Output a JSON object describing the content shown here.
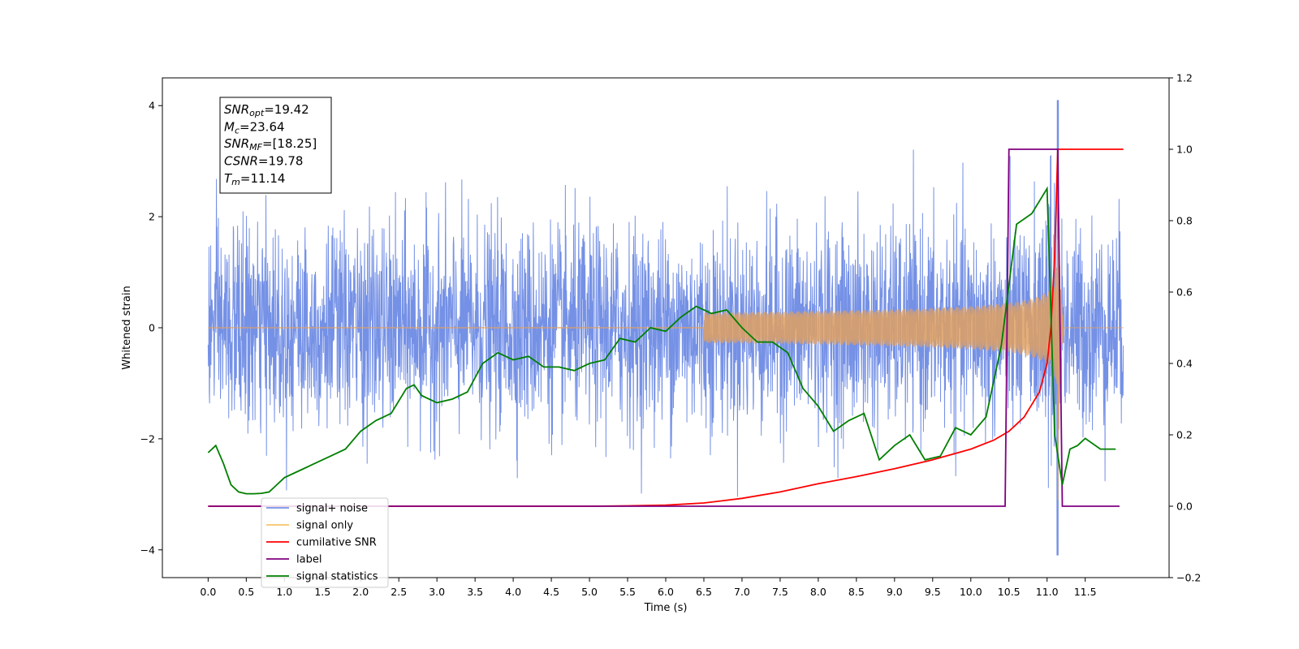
{
  "chart_data": {
    "type": "line",
    "xlabel": "Time (s)",
    "ylabel": "Whitened strain",
    "xlim": [
      -0.6,
      12.6
    ],
    "ylim": [
      -4.5,
      4.5
    ],
    "y2lim": [
      -0.2,
      1.2
    ],
    "x_ticks": [
      "0.0",
      "0.5",
      "1.0",
      "1.5",
      "2.0",
      "2.5",
      "3.0",
      "3.5",
      "4.0",
      "4.5",
      "5.0",
      "5.5",
      "6.0",
      "6.5",
      "7.0",
      "7.5",
      "8.0",
      "8.5",
      "9.0",
      "9.5",
      "10.0",
      "10.5",
      "11.0",
      "11.5"
    ],
    "y_ticks": [
      "4",
      "2",
      "0",
      "−2",
      "−4"
    ],
    "y_tick_values": [
      4,
      2,
      0,
      -2,
      -4
    ],
    "y2_ticks": [
      "1.2",
      "1.0",
      "0.8",
      "0.6",
      "0.4",
      "0.2",
      "0.0",
      "−0.2"
    ],
    "y2_tick_values": [
      1.2,
      1.0,
      0.8,
      0.6,
      0.4,
      0.2,
      0.0,
      -0.2
    ],
    "annotation": {
      "lines": [
        {
          "sym": "SNR",
          "sub": "opt",
          "val": "=19.42"
        },
        {
          "sym": "M",
          "sub": "c",
          "val": "=23.64"
        },
        {
          "sym": "SNR",
          "sub": "MF",
          "val": "=[18.25]"
        },
        {
          "sym": "CSNR",
          "sub": "",
          "val": "=19.78"
        },
        {
          "sym": "T",
          "sub": "m",
          "val": "=11.14"
        }
      ]
    },
    "legend": {
      "position": "lower-left",
      "entries": [
        {
          "label": "signal+ noise",
          "color": "#7591e6"
        },
        {
          "label": "signal only",
          "color": "#f5c56b"
        },
        {
          "label": "cumilative SNR",
          "color": "#ff0000"
        },
        {
          "label": "label",
          "color": "#800080"
        },
        {
          "label": "signal statistics",
          "color": "#007f00"
        }
      ]
    },
    "series": [
      {
        "name": "signal+ noise",
        "axis": "left",
        "color": "#7591e6",
        "kind": "noise",
        "x_range": [
          0.0,
          12.0
        ],
        "amplitude_sd": 0.9,
        "merger_time": 11.14,
        "min": -4.1,
        "max": 4.1
      },
      {
        "name": "signal only",
        "axis": "left",
        "color": "#e0a060",
        "kind": "chirp",
        "x_range": [
          0.0,
          12.0
        ],
        "start_visible": 6.5,
        "merger_time": 11.14,
        "peak": 3.7
      },
      {
        "name": "cumilative SNR",
        "axis": "right",
        "x": [
          0.0,
          5.0,
          5.5,
          6.0,
          6.5,
          7.0,
          7.5,
          8.0,
          8.5,
          9.0,
          9.5,
          10.0,
          10.3,
          10.5,
          10.7,
          10.9,
          11.0,
          11.05,
          11.1,
          11.14,
          11.2,
          12.0
        ],
        "y": [
          0.0,
          0.0,
          0.001,
          0.003,
          0.009,
          0.022,
          0.04,
          0.063,
          0.083,
          0.105,
          0.13,
          0.16,
          0.185,
          0.21,
          0.25,
          0.32,
          0.4,
          0.5,
          0.7,
          1.0,
          1.0,
          1.0
        ]
      },
      {
        "name": "label",
        "axis": "right",
        "x": [
          0.0,
          10.45,
          10.5,
          11.14,
          11.2,
          11.95
        ],
        "y": [
          0.0,
          0.0,
          1.0,
          1.0,
          0.0,
          0.0
        ]
      },
      {
        "name": "signal statistics",
        "axis": "right",
        "x": [
          0.0,
          0.1,
          0.2,
          0.3,
          0.4,
          0.5,
          0.6,
          0.7,
          0.8,
          0.9,
          1.0,
          1.2,
          1.4,
          1.6,
          1.8,
          2.0,
          2.2,
          2.4,
          2.6,
          2.7,
          2.8,
          3.0,
          3.2,
          3.4,
          3.6,
          3.8,
          4.0,
          4.2,
          4.4,
          4.6,
          4.8,
          5.0,
          5.2,
          5.4,
          5.6,
          5.8,
          6.0,
          6.2,
          6.4,
          6.6,
          6.8,
          7.0,
          7.2,
          7.4,
          7.6,
          7.8,
          8.0,
          8.2,
          8.4,
          8.6,
          8.8,
          9.0,
          9.2,
          9.4,
          9.6,
          9.8,
          10.0,
          10.2,
          10.4,
          10.6,
          10.8,
          11.0,
          11.1,
          11.2,
          11.3,
          11.4,
          11.5,
          11.7,
          11.9
        ],
        "y": [
          0.15,
          0.17,
          0.12,
          0.06,
          0.04,
          0.035,
          0.035,
          0.036,
          0.04,
          0.06,
          0.08,
          0.1,
          0.12,
          0.14,
          0.16,
          0.21,
          0.24,
          0.26,
          0.33,
          0.34,
          0.31,
          0.29,
          0.3,
          0.32,
          0.4,
          0.43,
          0.41,
          0.42,
          0.39,
          0.39,
          0.38,
          0.4,
          0.41,
          0.47,
          0.46,
          0.5,
          0.49,
          0.53,
          0.56,
          0.54,
          0.55,
          0.5,
          0.46,
          0.46,
          0.43,
          0.33,
          0.28,
          0.21,
          0.24,
          0.26,
          0.13,
          0.17,
          0.2,
          0.13,
          0.14,
          0.22,
          0.2,
          0.25,
          0.45,
          0.79,
          0.82,
          0.89,
          0.2,
          0.06,
          0.16,
          0.17,
          0.19,
          0.16,
          0.16
        ]
      }
    ]
  }
}
